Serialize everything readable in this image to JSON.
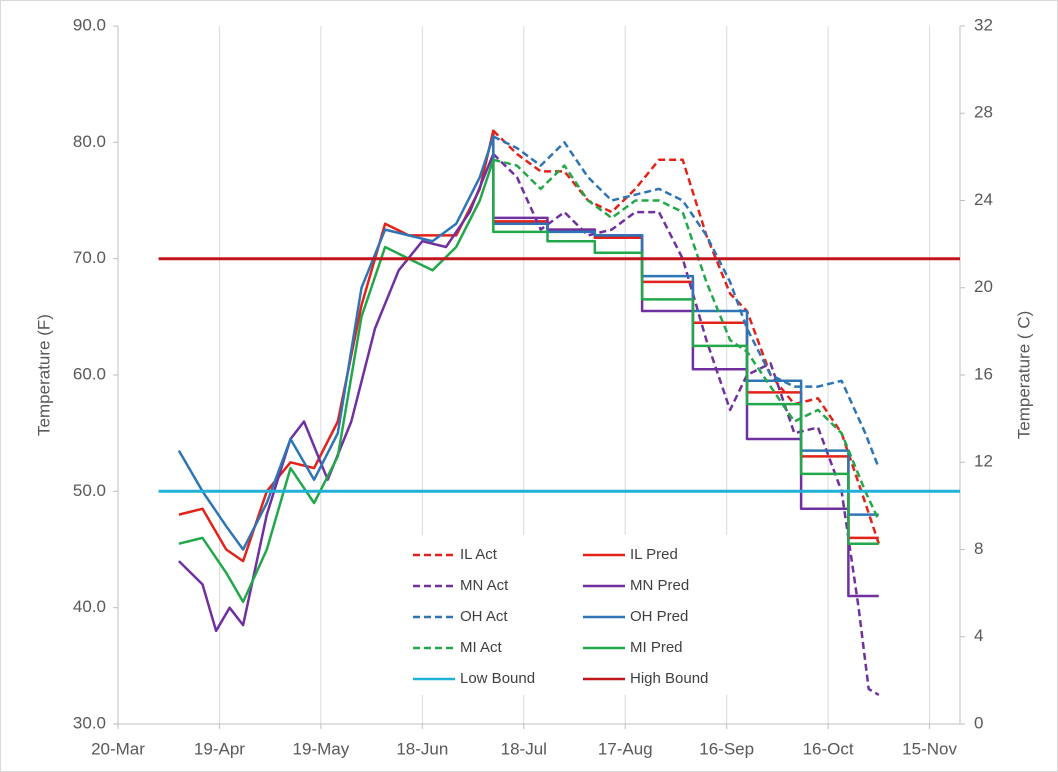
{
  "chart_data": {
    "type": "line",
    "y_label": "Temperature (F)",
    "y2_label": "Temperature ( C)",
    "xlim": [
      "20-Mar",
      "24-Nov"
    ],
    "xticks": [
      "20-Mar",
      "19-Apr",
      "19-May",
      "18-Jun",
      "18-Jul",
      "17-Aug",
      "16-Sep",
      "16-Oct",
      "15-Nov"
    ],
    "ylim": [
      30,
      90
    ],
    "yticks": [
      {
        "value": 30,
        "label": "30.0"
      },
      {
        "value": 40,
        "label": "40.0"
      },
      {
        "value": 50,
        "label": "50.0"
      },
      {
        "value": 60,
        "label": "60.0"
      },
      {
        "value": 70,
        "label": "70.0"
      },
      {
        "value": 80,
        "label": "80.0"
      },
      {
        "value": 90,
        "label": "90.0"
      }
    ],
    "y2lim": [
      0,
      32
    ],
    "y2ticks": [
      0,
      4,
      8,
      12,
      16,
      20,
      24,
      28,
      32
    ],
    "grid": "x",
    "legend": "lower center",
    "series": [
      {
        "name": "IL Act",
        "color": "#e32219",
        "style": "dashed",
        "x": [
          "9-Jul",
          "16-Jul",
          "23-Jul",
          "30-Jul",
          "6-Aug",
          "13-Aug",
          "20-Aug",
          "27-Aug",
          "3-Sep",
          "10-Sep",
          "17-Sep",
          "22-Sep",
          "29-Sep",
          "6-Oct",
          "13-Oct",
          "20-Oct",
          "27-Oct",
          "31-Oct"
        ],
        "values": [
          81,
          79,
          77.5,
          77.5,
          75,
          74,
          76,
          78.5,
          78.5,
          72,
          67,
          65.5,
          60,
          57.5,
          58,
          55,
          49,
          45.5
        ]
      },
      {
        "name": "IL Pred",
        "color": "#e32219",
        "style": "solid",
        "x": [
          "7-Apr",
          "14-Apr",
          "21-Apr",
          "26-Apr",
          "3-May",
          "10-May",
          "17-May",
          "24-May",
          "31-May",
          "7-Jun",
          "14-Jun",
          "21-Jun",
          "28-Jun",
          "5-Jul",
          "9-Jul",
          "9-Jul",
          "25-Jul",
          "25-Jul",
          "8-Aug",
          "8-Aug",
          "22-Aug",
          "22-Aug",
          "6-Sep",
          "6-Sep",
          "22-Sep",
          "22-Sep",
          "8-Oct",
          "8-Oct",
          "22-Oct",
          "22-Oct",
          "31-Oct"
        ],
        "values": [
          48,
          48.5,
          45,
          44,
          50,
          52.5,
          52,
          56,
          66,
          73,
          72,
          72,
          72,
          76,
          81,
          73.2,
          73.2,
          72.5,
          72.5,
          71.8,
          71.8,
          68,
          68,
          64.5,
          64.5,
          58.5,
          58.5,
          53,
          53,
          46,
          46
        ]
      },
      {
        "name": "MN Act",
        "color": "#7030a0",
        "style": "dashed",
        "x": [
          "9-Jul",
          "16-Jul",
          "23-Jul",
          "30-Jul",
          "6-Aug",
          "13-Aug",
          "20-Aug",
          "27-Aug",
          "3-Sep",
          "10-Sep",
          "17-Sep",
          "22-Sep",
          "29-Sep",
          "6-Oct",
          "13-Oct",
          "20-Oct",
          "25-Oct",
          "28-Oct",
          "31-Oct"
        ],
        "values": [
          79,
          77,
          72.5,
          74,
          72,
          72.5,
          74,
          74,
          70,
          63,
          57,
          60,
          61,
          55,
          55.5,
          50,
          40,
          33,
          32.5
        ]
      },
      {
        "name": "MN Pred",
        "color": "#7030a0",
        "style": "solid",
        "x": [
          "7-Apr",
          "14-Apr",
          "18-Apr",
          "22-Apr",
          "26-Apr",
          "3-May",
          "10-May",
          "14-May",
          "21-May",
          "28-May",
          "4-Jun",
          "11-Jun",
          "18-Jun",
          "25-Jun",
          "2-Jul",
          "9-Jul",
          "9-Jul",
          "25-Jul",
          "25-Jul",
          "8-Aug",
          "8-Aug",
          "22-Aug",
          "22-Aug",
          "6-Sep",
          "6-Sep",
          "22-Sep",
          "22-Sep",
          "8-Oct",
          "8-Oct",
          "22-Oct",
          "22-Oct",
          "31-Oct"
        ],
        "values": [
          44,
          42,
          38,
          40,
          38.5,
          48,
          54.5,
          56,
          51,
          56,
          64,
          69,
          71.5,
          71,
          74,
          79,
          73.5,
          73.5,
          72.5,
          72.5,
          72,
          72,
          65.5,
          65.5,
          60.5,
          60.5,
          54.5,
          54.5,
          48.5,
          48.5,
          41,
          41
        ]
      },
      {
        "name": "OH Act",
        "color": "#2e75b6",
        "style": "dashed",
        "x": [
          "9-Jul",
          "16-Jul",
          "23-Jul",
          "30-Jul",
          "6-Aug",
          "13-Aug",
          "20-Aug",
          "27-Aug",
          "3-Sep",
          "10-Sep",
          "17-Sep",
          "22-Sep",
          "29-Sep",
          "6-Oct",
          "13-Oct",
          "20-Oct",
          "27-Oct",
          "31-Oct"
        ],
        "values": [
          80.5,
          79.5,
          78,
          80,
          77,
          75,
          75.5,
          76,
          75,
          72,
          68,
          64,
          60,
          59,
          59,
          59.5,
          55,
          52
        ]
      },
      {
        "name": "OH Pred",
        "color": "#2e75b6",
        "style": "solid",
        "x": [
          "7-Apr",
          "14-Apr",
          "21-Apr",
          "26-Apr",
          "3-May",
          "10-May",
          "17-May",
          "24-May",
          "31-May",
          "7-Jun",
          "14-Jun",
          "21-Jun",
          "28-Jun",
          "5-Jul",
          "9-Jul",
          "9-Jul",
          "25-Jul",
          "25-Jul",
          "8-Aug",
          "8-Aug",
          "22-Aug",
          "22-Aug",
          "6-Sep",
          "6-Sep",
          "22-Sep",
          "22-Sep",
          "8-Oct",
          "8-Oct",
          "22-Oct",
          "22-Oct",
          "31-Oct"
        ],
        "values": [
          53.5,
          50,
          47,
          45,
          49,
          54.5,
          51,
          55,
          67.5,
          72.5,
          72,
          71.5,
          73,
          77,
          80.5,
          73,
          73,
          72.3,
          72.3,
          72,
          72,
          68.5,
          68.5,
          65.5,
          65.5,
          59.5,
          59.5,
          53.5,
          53.5,
          48,
          48
        ]
      },
      {
        "name": "MI Act",
        "color": "#22a84a",
        "style": "dashed",
        "x": [
          "9-Jul",
          "16-Jul",
          "23-Jul",
          "30-Jul",
          "6-Aug",
          "13-Aug",
          "20-Aug",
          "27-Aug",
          "3-Sep",
          "10-Sep",
          "17-Sep",
          "22-Sep",
          "29-Sep",
          "6-Oct",
          "13-Oct",
          "20-Oct",
          "27-Oct",
          "31-Oct"
        ],
        "values": [
          78.5,
          78,
          76,
          78,
          75,
          73.5,
          75,
          75,
          74,
          68,
          63,
          62,
          59,
          56,
          57,
          55,
          50,
          47.5
        ]
      },
      {
        "name": "MI Pred",
        "color": "#22a84a",
        "style": "solid",
        "x": [
          "7-Apr",
          "14-Apr",
          "21-Apr",
          "26-Apr",
          "3-May",
          "10-May",
          "17-May",
          "24-May",
          "31-May",
          "7-Jun",
          "14-Jun",
          "21-Jun",
          "28-Jun",
          "5-Jul",
          "9-Jul",
          "9-Jul",
          "25-Jul",
          "25-Jul",
          "8-Aug",
          "8-Aug",
          "22-Aug",
          "22-Aug",
          "6-Sep",
          "6-Sep",
          "22-Sep",
          "22-Sep",
          "8-Oct",
          "8-Oct",
          "22-Oct",
          "22-Oct",
          "31-Oct"
        ],
        "values": [
          45.5,
          46,
          43,
          40.5,
          45,
          52,
          49,
          53,
          65,
          71,
          70,
          69,
          71,
          75,
          78.5,
          72.3,
          72.3,
          71.5,
          71.5,
          70.5,
          70.5,
          66.5,
          66.5,
          62.5,
          62.5,
          57.5,
          57.5,
          51.5,
          51.5,
          45.5,
          45.5
        ]
      },
      {
        "name": "Low Bound",
        "color": "#21b0d8",
        "style": "solid",
        "x": [
          "1-Apr",
          "24-Nov"
        ],
        "values": [
          50,
          50
        ]
      },
      {
        "name": "High Bound",
        "color": "#c0161c",
        "style": "solid",
        "x": [
          "1-Apr",
          "24-Nov"
        ],
        "values": [
          70,
          70
        ]
      }
    ]
  }
}
